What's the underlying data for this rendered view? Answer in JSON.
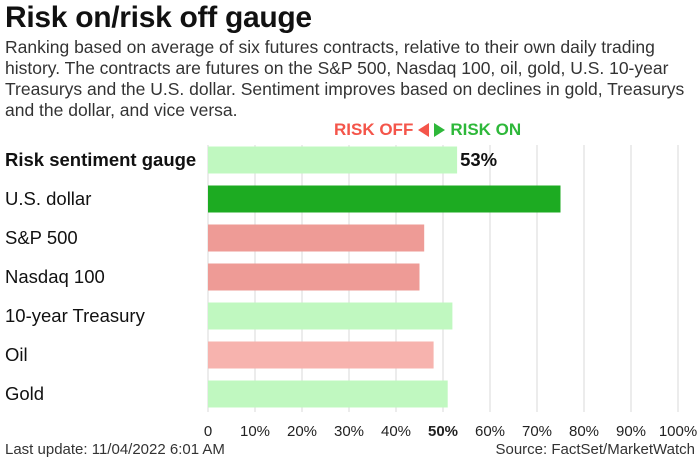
{
  "header": {
    "title": "Risk on/risk off gauge",
    "subtitle": "Ranking based on average of six futures contracts, relative to their own daily trading history. The contracts are futures on the S&P 500, Nasdaq 100, oil, gold, U.S. 10-year Treasurys and the U.S. dollar. Sentiment improves based on declines in gold, Treasurys and the dollar, and vice versa."
  },
  "legend": {
    "risk_off": "RISK OFF",
    "risk_on": "RISK ON"
  },
  "footer": {
    "last_update": "Last update: 11/04/2022 6:01 AM",
    "source": "Source: FactSet/MarketWatch"
  },
  "colors": {
    "light_green": "#c0f8c0",
    "dark_green": "#1dab22",
    "dark_red": "#ee9b96",
    "light_red": "#f7b3ae",
    "gridline": "#d8d8d8",
    "text": "#111111"
  },
  "chart_data": {
    "type": "bar",
    "orientation": "horizontal",
    "categories": [
      "Risk sentiment gauge",
      "U.S. dollar",
      "S&P 500",
      "Nasdaq 100",
      "10-year Treasury",
      "Oil",
      "Gold"
    ],
    "values": [
      53,
      75,
      46,
      45,
      52,
      48,
      51
    ],
    "bar_colors": [
      "light_green",
      "dark_green",
      "dark_red",
      "dark_red",
      "light_green",
      "light_red",
      "light_green"
    ],
    "bold_categories": [
      "Risk sentiment gauge"
    ],
    "value_labels": [
      {
        "category": "Risk sentiment gauge",
        "text": "53%"
      }
    ],
    "xlim": [
      0,
      100
    ],
    "xticks": [
      "0",
      "10%",
      "20%",
      "30%",
      "40%",
      "50%",
      "60%",
      "70%",
      "80%",
      "90%",
      "100%"
    ],
    "bold_tick": "50%",
    "grid": "vertical"
  }
}
